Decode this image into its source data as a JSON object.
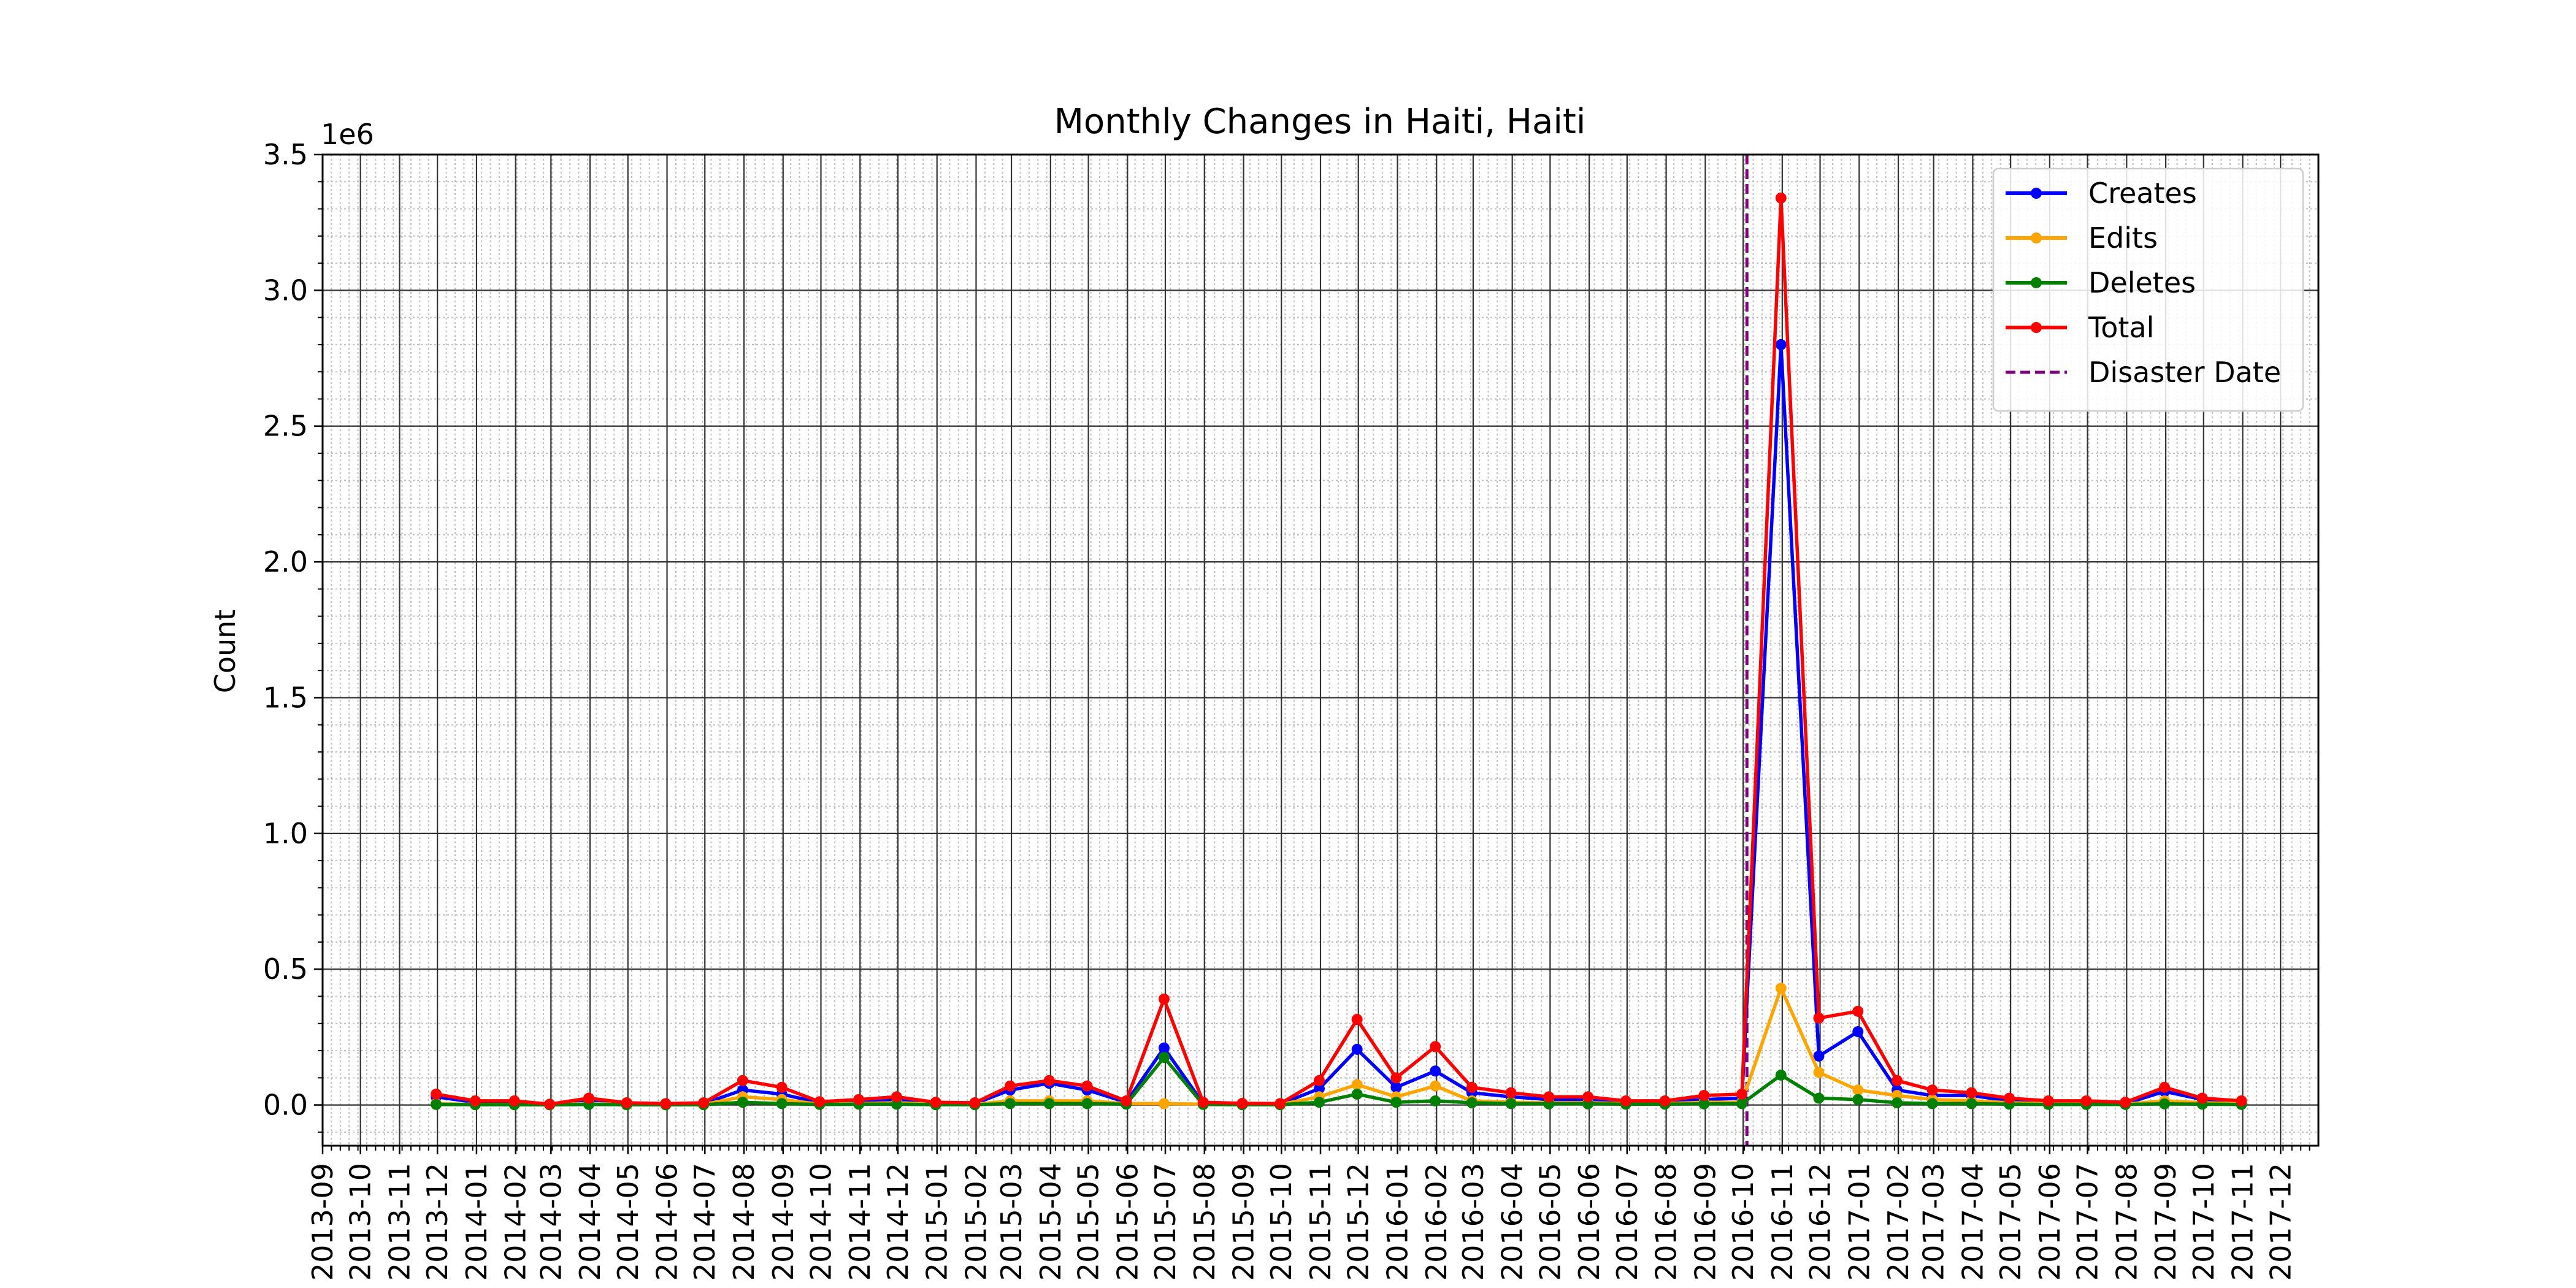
{
  "chart_data": {
    "type": "line",
    "title": "Monthly Changes in Haiti, Haiti",
    "xlabel": "",
    "ylabel": "Count",
    "y_offset_label": "1e6",
    "y_scale_factor": 1000000,
    "xlim": [
      "2013-09-01",
      "2017-12-31"
    ],
    "ylim": [
      -150000,
      3500000
    ],
    "x_ticks": [
      "2013-09",
      "2013-10",
      "2013-11",
      "2013-12",
      "2014-01",
      "2014-02",
      "2014-03",
      "2014-04",
      "2014-05",
      "2014-06",
      "2014-07",
      "2014-08",
      "2014-09",
      "2014-10",
      "2014-11",
      "2014-12",
      "2015-01",
      "2015-02",
      "2015-03",
      "2015-04",
      "2015-05",
      "2015-06",
      "2015-07",
      "2015-08",
      "2015-09",
      "2015-10",
      "2015-11",
      "2015-12",
      "2016-01",
      "2016-02",
      "2016-03",
      "2016-04",
      "2016-05",
      "2016-06",
      "2016-07",
      "2016-08",
      "2016-09",
      "2016-10",
      "2016-11",
      "2016-12",
      "2017-01",
      "2017-02",
      "2017-03",
      "2017-04",
      "2017-05",
      "2017-06",
      "2017-07",
      "2017-08",
      "2017-09",
      "2017-10",
      "2017-11",
      "2017-12"
    ],
    "y_ticks": [
      "0.0",
      "0.5",
      "1.0",
      "1.5",
      "2.0",
      "2.5",
      "3.0",
      "3.5"
    ],
    "x": [
      "2013-11-30",
      "2013-12-31",
      "2014-01-31",
      "2014-02-28",
      "2014-03-31",
      "2014-04-30",
      "2014-05-31",
      "2014-06-30",
      "2014-07-31",
      "2014-08-31",
      "2014-09-30",
      "2014-10-31",
      "2014-11-30",
      "2014-12-31",
      "2015-01-31",
      "2015-02-28",
      "2015-03-31",
      "2015-04-30",
      "2015-05-31",
      "2015-06-30",
      "2015-07-31",
      "2015-08-31",
      "2015-09-30",
      "2015-10-31",
      "2015-11-30",
      "2015-12-31",
      "2016-01-31",
      "2016-02-29",
      "2016-03-31",
      "2016-04-30",
      "2016-05-31",
      "2016-06-30",
      "2016-07-31",
      "2016-08-31",
      "2016-09-30",
      "2016-10-31",
      "2016-11-30",
      "2016-12-31",
      "2017-01-31",
      "2017-02-28",
      "2017-03-31",
      "2017-04-30",
      "2017-05-31",
      "2017-06-30",
      "2017-07-31",
      "2017-08-31",
      "2017-09-30",
      "2017-10-31"
    ],
    "series": [
      {
        "name": "Creates",
        "color": "#0000ff",
        "values": [
          30000,
          10000,
          10000,
          2000,
          15000,
          5000,
          3000,
          5000,
          55000,
          40000,
          8000,
          12000,
          20000,
          5000,
          5000,
          55000,
          80000,
          55000,
          10000,
          210000,
          5000,
          3000,
          3000,
          60000,
          205000,
          65000,
          125000,
          45000,
          30000,
          20000,
          20000,
          10000,
          10000,
          20000,
          25000,
          2800000,
          180000,
          270000,
          55000,
          35000,
          35000,
          15000,
          10000,
          10000,
          5000,
          50000,
          20000,
          10000
        ]
      },
      {
        "name": "Edits",
        "color": "#ffa500",
        "values": [
          5000,
          2000,
          2000,
          1000,
          5000,
          2000,
          1000,
          2000,
          30000,
          20000,
          3000,
          5000,
          8000,
          3000,
          2000,
          15000,
          15000,
          15000,
          5000,
          5000,
          3000,
          2000,
          2000,
          30000,
          75000,
          30000,
          70000,
          15000,
          10000,
          8000,
          8000,
          5000,
          5000,
          10000,
          10000,
          430000,
          120000,
          55000,
          35000,
          20000,
          15000,
          8000,
          5000,
          5000,
          3000,
          15000,
          8000,
          5000
        ]
      },
      {
        "name": "Deletes",
        "color": "#008000",
        "values": [
          2000,
          1000,
          1000,
          500,
          2000,
          1000,
          500,
          1000,
          10000,
          5000,
          2000,
          3000,
          3000,
          1000,
          1000,
          5000,
          5000,
          5000,
          3000,
          175000,
          2000,
          1000,
          1000,
          10000,
          40000,
          10000,
          15000,
          8000,
          5000,
          4000,
          4000,
          3000,
          3000,
          4000,
          5000,
          110000,
          25000,
          20000,
          8000,
          5000,
          5000,
          3000,
          2000,
          2000,
          2000,
          4000,
          3000,
          2000
        ]
      },
      {
        "name": "Total",
        "color": "#ff0000",
        "values": [
          40000,
          15000,
          15000,
          3000,
          25000,
          8000,
          5000,
          8000,
          90000,
          65000,
          12000,
          20000,
          30000,
          10000,
          8000,
          70000,
          90000,
          70000,
          15000,
          390000,
          10000,
          6000,
          5000,
          90000,
          315000,
          100000,
          215000,
          65000,
          45000,
          30000,
          30000,
          15000,
          15000,
          35000,
          40000,
          3340000,
          320000,
          345000,
          90000,
          55000,
          45000,
          25000,
          15000,
          15000,
          10000,
          65000,
          25000,
          15000
        ]
      }
    ],
    "disaster_date": "2016-10-04",
    "disaster_label": "Disaster Date",
    "disaster_color": "#800080",
    "grid": true,
    "legend_position": "top-right"
  }
}
